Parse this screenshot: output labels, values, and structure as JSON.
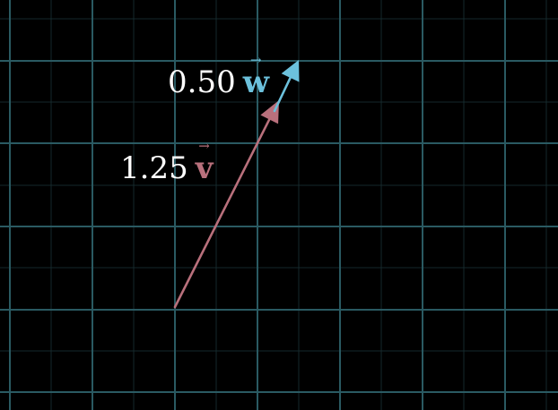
{
  "colors": {
    "background": "#000000",
    "grid_major": "#2a5a62",
    "grid_minor": "#15292c",
    "vector_v": "#b9707c",
    "vector_w": "#6cc1dc",
    "label_text": "#ffffff"
  },
  "labels": {
    "w": {
      "coefficient": "0.50",
      "symbol": "w",
      "arrow": "→"
    },
    "v": {
      "coefficient": "1.25",
      "symbol": "v",
      "arrow": "→"
    }
  }
}
